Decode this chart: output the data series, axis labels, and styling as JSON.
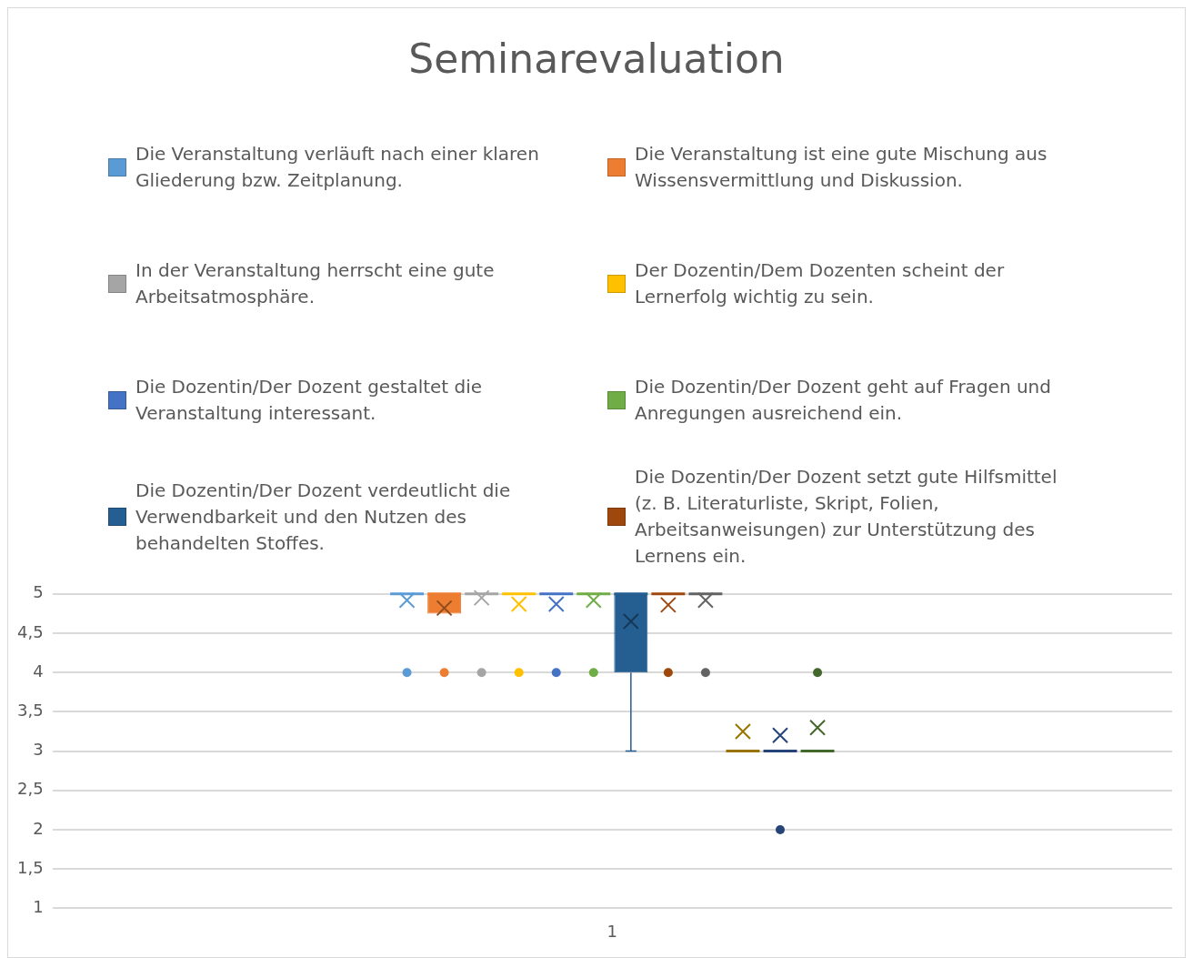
{
  "chart_data": {
    "type": "box",
    "title": "Seminarevaluation",
    "categories": [
      "1"
    ],
    "ylim": [
      1,
      5
    ],
    "yticks": [
      1,
      {
        "value": 1.5,
        "label": "1,5"
      },
      2,
      {
        "value": 2.5,
        "label": "2,5"
      },
      3,
      {
        "value": 3.5,
        "label": "3,5"
      },
      4,
      {
        "value": 4.5,
        "label": "4,5"
      },
      5
    ],
    "grid": "y",
    "legend": "top",
    "series": [
      {
        "name": "Die Veranstaltung verläuft nach einer klaren Gliederung bzw. Zeitplanung.",
        "color": "#5b9bd5",
        "boxes": [
          {
            "low": 5,
            "q1": 5,
            "median": 5,
            "q3": 5,
            "high": 5,
            "mean": 4.92,
            "outliers": [
              4
            ]
          }
        ]
      },
      {
        "name": "Die Veranstaltung ist eine gute Mischung aus Wissensvermittlung und Diskussion.",
        "color": "#ed7d31",
        "boxes": [
          {
            "low": 4.75,
            "q1": 4.75,
            "median": 5,
            "q3": 5,
            "high": 5,
            "mean": 4.82,
            "outliers": [
              4
            ]
          }
        ]
      },
      {
        "name": "In der Veranstaltung herrscht eine gute Arbeitsatmosphäre.",
        "color": "#a5a5a5",
        "boxes": [
          {
            "low": 5,
            "q1": 5,
            "median": 5,
            "q3": 5,
            "high": 5,
            "mean": 4.95,
            "outliers": [
              4
            ]
          }
        ]
      },
      {
        "name": "Der Dozentin/Dem Dozenten scheint der Lernerfolg wichtig zu sein.",
        "color": "#ffc000",
        "boxes": [
          {
            "low": 5,
            "q1": 5,
            "median": 5,
            "q3": 5,
            "high": 5,
            "mean": 4.87,
            "outliers": [
              4
            ]
          }
        ]
      },
      {
        "name": "Die Dozentin/Der Dozent gestaltet die Veranstaltung interessant.",
        "color": "#4472c4",
        "boxes": [
          {
            "low": 5,
            "q1": 5,
            "median": 5,
            "q3": 5,
            "high": 5,
            "mean": 4.87,
            "outliers": [
              4
            ]
          }
        ]
      },
      {
        "name": "Die Dozentin/Der Dozent geht auf Fragen und Anregungen ausreichend ein.",
        "color": "#70ad47",
        "boxes": [
          {
            "low": 5,
            "q1": 5,
            "median": 5,
            "q3": 5,
            "high": 5,
            "mean": 4.92,
            "outliers": [
              4
            ]
          }
        ]
      },
      {
        "name": "Die Dozentin/Der Dozent verdeutlicht die Verwendbarkeit und den Nutzen des behandelten Stoffes.",
        "color": "#255e91",
        "boxes": [
          {
            "low": 3,
            "q1": 4,
            "median": 5,
            "q3": 5,
            "high": 5,
            "mean": 4.65
          }
        ]
      },
      {
        "name": "Die Dozentin/Der Dozent setzt gute Hilfsmittel (z. B. Literaturliste, Skript, Folien, Arbeitsanweisungen) zur Unterstützung des Lernens ein.",
        "color": "#9e480e",
        "boxes": [
          {
            "low": 5,
            "q1": 5,
            "median": 5,
            "q3": 5,
            "high": 5,
            "mean": 4.86,
            "outliers": [
              4
            ]
          }
        ]
      },
      {
        "color": "#636363",
        "boxes": [
          {
            "low": 5,
            "q1": 5,
            "median": 5,
            "q3": 5,
            "high": 5,
            "mean": 4.92,
            "outliers": [
              4
            ]
          }
        ]
      },
      {
        "color": "#997300",
        "boxes": [
          {
            "low": 3,
            "q1": 3,
            "median": 3,
            "q3": 3,
            "high": 3,
            "mean": 3.25
          }
        ]
      },
      {
        "color": "#264478",
        "boxes": [
          {
            "low": 3,
            "q1": 3,
            "median": 3,
            "q3": 3,
            "high": 3,
            "mean": 3.2,
            "outliers": [
              2
            ]
          }
        ]
      },
      {
        "color": "#43682b",
        "boxes": [
          {
            "low": 3,
            "q1": 3,
            "median": 3,
            "q3": 3,
            "high": 3,
            "mean": 3.3,
            "outliers": [
              4
            ]
          }
        ]
      }
    ]
  }
}
